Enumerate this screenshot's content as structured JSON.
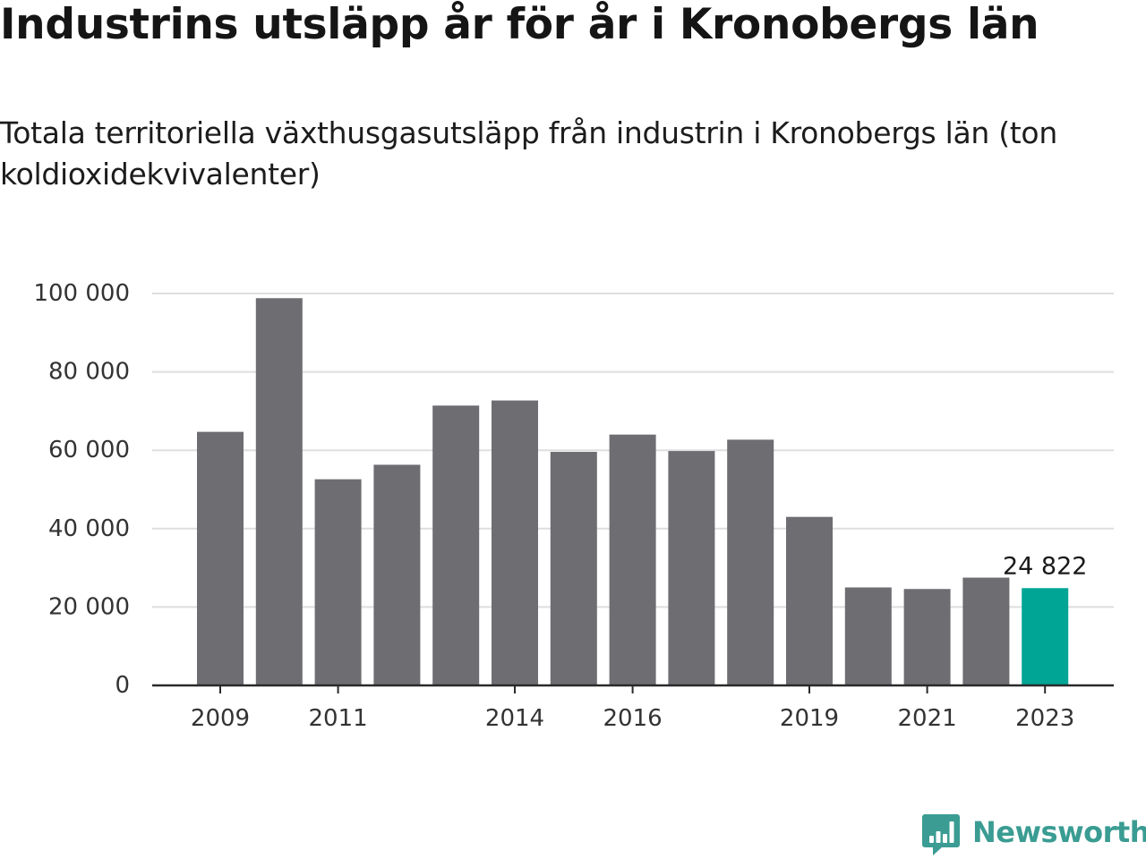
{
  "title": "Industrins utsläpp år för år i Kronobergs län",
  "subtitle": "Totala territoriella växthusgasutsläpp från industrin i Kronobergs län (ton koldioxidekvivalenter)",
  "brand": {
    "name": "Newsworthy",
    "icon": "newsworthy-bar-chart-logo-icon",
    "color": "#3a9c92"
  },
  "colors": {
    "bar": "#6d6d72",
    "highlight": "#00a596",
    "grid": "#dedede",
    "axis": "#2a2a2a",
    "tick_text": "#333333"
  },
  "chart_data": {
    "type": "bar",
    "title": "",
    "xlabel": "",
    "ylabel": "",
    "x": [
      2009,
      2010,
      2011,
      2012,
      2013,
      2014,
      2015,
      2016,
      2017,
      2018,
      2019,
      2020,
      2021,
      2022,
      2023
    ],
    "values": [
      64700,
      98800,
      52600,
      56300,
      71400,
      72700,
      59600,
      64000,
      59800,
      62700,
      43000,
      25000,
      24600,
      27500,
      24822
    ],
    "x_tick_labels": [
      "2009",
      "2011",
      "2014",
      "2016",
      "2019",
      "2021",
      "2023"
    ],
    "y_ticks": [
      0,
      20000,
      40000,
      60000,
      80000,
      100000
    ],
    "y_tick_labels": [
      "0",
      "20 000",
      "40 000",
      "60 000",
      "80 000",
      "100 000"
    ],
    "ylim": [
      0,
      100000
    ],
    "grid": true,
    "legend": "none",
    "highlight": {
      "x": 2023,
      "value": 24822,
      "label": "24 822"
    }
  }
}
